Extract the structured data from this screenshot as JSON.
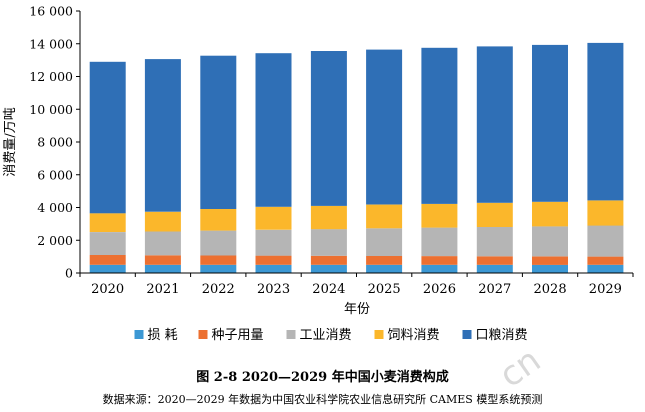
{
  "colors": {
    "loss": "#3c98d4",
    "seed": "#ec7031",
    "industrial": "#b5b5b5",
    "feed": "#fbb72b",
    "food": "#2f6fb6"
  },
  "chart_data": {
    "type": "stacked bar",
    "categories": [
      "2020",
      "2021",
      "2022",
      "2023",
      "2024",
      "2025",
      "2026",
      "2027",
      "2028",
      "2029"
    ],
    "xlabel": "年份",
    "ylabel": "消费量/万吨",
    "ylim": [
      0,
      16000
    ],
    "yticks": [
      0,
      2000,
      4000,
      6000,
      8000,
      10000,
      12000,
      14000,
      16000
    ],
    "ytick_labels": [
      "0",
      "2 000",
      "4 000",
      "6 000",
      "8 000",
      "10 000",
      "12 000",
      "14 000",
      "16 000"
    ],
    "grid": false,
    "legend_position": "bottom",
    "series": [
      {
        "name": "损  耗",
        "color_key": "loss",
        "values": [
          500,
          500,
          500,
          500,
          500,
          500,
          500,
          500,
          500,
          500
        ]
      },
      {
        "name": "种子用量",
        "color_key": "seed",
        "values": [
          600,
          580,
          570,
          560,
          550,
          540,
          530,
          520,
          510,
          500
        ]
      },
      {
        "name": "工业消费",
        "color_key": "industrial",
        "values": [
          1400,
          1460,
          1520,
          1580,
          1630,
          1690,
          1740,
          1790,
          1840,
          1900
        ]
      },
      {
        "name": "饲料消费",
        "color_key": "feed",
        "values": [
          1150,
          1200,
          1320,
          1400,
          1420,
          1450,
          1450,
          1480,
          1500,
          1530
        ]
      },
      {
        "name": "口粮消费",
        "color_key": "food",
        "values": [
          9250,
          9320,
          9360,
          9380,
          9460,
          9460,
          9530,
          9550,
          9580,
          9620
        ]
      }
    ]
  },
  "figure": {
    "title": "图 2-8    2020—2029 年中国小麦消费构成",
    "source": "数据来源：2020—2029 年数据为中国农业科学院农业信息研究所 CAMES 模型系统预测"
  },
  "watermark": "cn"
}
